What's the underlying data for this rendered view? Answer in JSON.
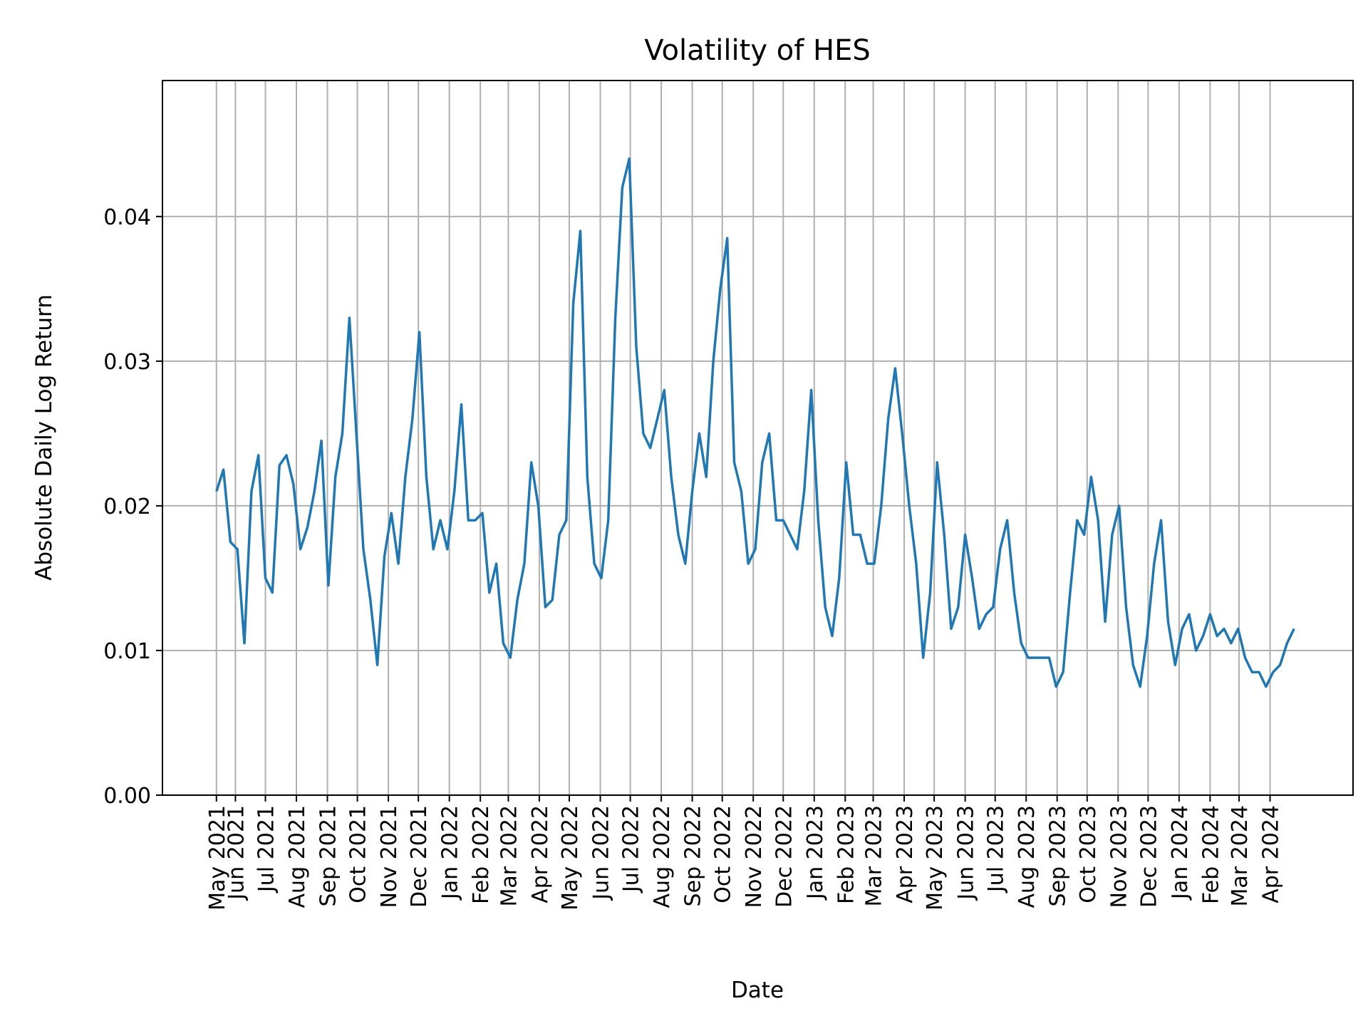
{
  "chart_data": {
    "type": "line",
    "title": "Volatility of HES",
    "xlabel": "Date",
    "ylabel": "Absolute Daily Log Return",
    "xlim": [
      "2021-03-20",
      "2024-06-23"
    ],
    "ylim": [
      0,
      0.0494
    ],
    "grid": true,
    "color": "#1f77b4",
    "y_ticks": [
      {
        "value": 0.0,
        "label": "0.00"
      },
      {
        "value": 0.01,
        "label": "0.01"
      },
      {
        "value": 0.02,
        "label": "0.02"
      },
      {
        "value": 0.03,
        "label": "0.03"
      },
      {
        "value": 0.04,
        "label": "0.04"
      }
    ],
    "x_ticks": [
      {
        "date": "2021-05-13",
        "label": "May 2021"
      },
      {
        "date": "2021-06-01",
        "label": "Jun 2021"
      },
      {
        "date": "2021-07-01",
        "label": "Jul 2021"
      },
      {
        "date": "2021-08-01",
        "label": "Aug 2021"
      },
      {
        "date": "2021-09-01",
        "label": "Sep 2021"
      },
      {
        "date": "2021-10-01",
        "label": "Oct 2021"
      },
      {
        "date": "2021-11-01",
        "label": "Nov 2021"
      },
      {
        "date": "2021-12-01",
        "label": "Dec 2021"
      },
      {
        "date": "2022-01-01",
        "label": "Jan 2022"
      },
      {
        "date": "2022-02-01",
        "label": "Feb 2022"
      },
      {
        "date": "2022-03-01",
        "label": "Mar 2022"
      },
      {
        "date": "2022-04-01",
        "label": "Apr 2022"
      },
      {
        "date": "2022-05-01",
        "label": "May 2022"
      },
      {
        "date": "2022-06-01",
        "label": "Jun 2022"
      },
      {
        "date": "2022-07-01",
        "label": "Jul 2022"
      },
      {
        "date": "2022-08-01",
        "label": "Aug 2022"
      },
      {
        "date": "2022-09-01",
        "label": "Sep 2022"
      },
      {
        "date": "2022-10-01",
        "label": "Oct 2022"
      },
      {
        "date": "2022-11-01",
        "label": "Nov 2022"
      },
      {
        "date": "2022-12-01",
        "label": "Dec 2022"
      },
      {
        "date": "2023-01-01",
        "label": "Jan 2023"
      },
      {
        "date": "2023-02-01",
        "label": "Feb 2023"
      },
      {
        "date": "2023-03-01",
        "label": "Mar 2023"
      },
      {
        "date": "2023-04-01",
        "label": "Apr 2023"
      },
      {
        "date": "2023-05-01",
        "label": "May 2023"
      },
      {
        "date": "2023-06-01",
        "label": "Jun 2023"
      },
      {
        "date": "2023-07-01",
        "label": "Jul 2023"
      },
      {
        "date": "2023-08-01",
        "label": "Aug 2023"
      },
      {
        "date": "2023-09-01",
        "label": "Sep 2023"
      },
      {
        "date": "2023-10-01",
        "label": "Oct 2023"
      },
      {
        "date": "2023-11-01",
        "label": "Nov 2023"
      },
      {
        "date": "2023-12-01",
        "label": "Dec 2023"
      },
      {
        "date": "2024-01-01",
        "label": "Jan 2024"
      },
      {
        "date": "2024-02-01",
        "label": "Feb 2024"
      },
      {
        "date": "2024-03-01",
        "label": "Mar 2024"
      },
      {
        "date": "2024-04-01",
        "label": "Apr 2024"
      }
    ],
    "x": [
      "2021-05-13",
      "2021-05-20",
      "2021-05-27",
      "2021-06-03",
      "2021-06-10",
      "2021-06-17",
      "2021-06-24",
      "2021-07-01",
      "2021-07-08",
      "2021-07-15",
      "2021-07-22",
      "2021-07-29",
      "2021-08-05",
      "2021-08-12",
      "2021-08-19",
      "2021-08-26",
      "2021-09-02",
      "2021-09-09",
      "2021-09-16",
      "2021-09-23",
      "2021-09-30",
      "2021-10-07",
      "2021-10-14",
      "2021-10-21",
      "2021-10-28",
      "2021-11-04",
      "2021-11-11",
      "2021-11-18",
      "2021-11-25",
      "2021-12-02",
      "2021-12-09",
      "2021-12-16",
      "2021-12-23",
      "2021-12-30",
      "2022-01-06",
      "2022-01-13",
      "2022-01-20",
      "2022-01-27",
      "2022-02-03",
      "2022-02-10",
      "2022-02-17",
      "2022-02-24",
      "2022-03-03",
      "2022-03-10",
      "2022-03-17",
      "2022-03-24",
      "2022-03-31",
      "2022-04-07",
      "2022-04-14",
      "2022-04-21",
      "2022-04-28",
      "2022-05-05",
      "2022-05-12",
      "2022-05-19",
      "2022-05-26",
      "2022-06-02",
      "2022-06-09",
      "2022-06-16",
      "2022-06-23",
      "2022-06-30",
      "2022-07-07",
      "2022-07-14",
      "2022-07-21",
      "2022-07-28",
      "2022-08-04",
      "2022-08-11",
      "2022-08-18",
      "2022-08-25",
      "2022-09-01",
      "2022-09-08",
      "2022-09-15",
      "2022-09-22",
      "2022-09-29",
      "2022-10-06",
      "2022-10-13",
      "2022-10-20",
      "2022-10-27",
      "2022-11-03",
      "2022-11-10",
      "2022-11-17",
      "2022-11-24",
      "2022-12-01",
      "2022-12-08",
      "2022-12-15",
      "2022-12-22",
      "2022-12-29",
      "2023-01-05",
      "2023-01-12",
      "2023-01-19",
      "2023-01-26",
      "2023-02-02",
      "2023-02-09",
      "2023-02-16",
      "2023-02-23",
      "2023-03-02",
      "2023-03-09",
      "2023-03-16",
      "2023-03-23",
      "2023-03-30",
      "2023-04-06",
      "2023-04-13",
      "2023-04-20",
      "2023-04-27",
      "2023-05-04",
      "2023-05-11",
      "2023-05-18",
      "2023-05-25",
      "2023-06-01",
      "2023-06-08",
      "2023-06-15",
      "2023-06-22",
      "2023-06-29",
      "2023-07-06",
      "2023-07-13",
      "2023-07-20",
      "2023-07-27",
      "2023-08-03",
      "2023-08-10",
      "2023-08-17",
      "2023-08-24",
      "2023-08-31",
      "2023-09-07",
      "2023-09-14",
      "2023-09-21",
      "2023-09-28",
      "2023-10-05",
      "2023-10-12",
      "2023-10-19",
      "2023-10-26",
      "2023-11-02",
      "2023-11-09",
      "2023-11-16",
      "2023-11-23",
      "2023-11-30",
      "2023-12-07",
      "2023-12-14",
      "2023-12-21",
      "2023-12-28",
      "2024-01-04",
      "2024-01-11",
      "2024-01-18",
      "2024-01-25",
      "2024-02-01",
      "2024-02-08",
      "2024-02-15",
      "2024-02-22",
      "2024-02-29",
      "2024-03-07",
      "2024-03-14",
      "2024-03-21",
      "2024-03-28",
      "2024-04-04",
      "2024-04-11",
      "2024-04-18",
      "2024-04-25"
    ],
    "y": [
      0.021,
      0.0225,
      0.0175,
      0.017,
      0.0105,
      0.021,
      0.0235,
      0.015,
      0.014,
      0.0228,
      0.0235,
      0.0215,
      0.017,
      0.0185,
      0.021,
      0.0245,
      0.0145,
      0.022,
      0.025,
      0.033,
      0.025,
      0.017,
      0.0135,
      0.009,
      0.0165,
      0.0195,
      0.016,
      0.022,
      0.026,
      0.032,
      0.022,
      0.017,
      0.019,
      0.017,
      0.021,
      0.027,
      0.019,
      0.019,
      0.0195,
      0.014,
      0.016,
      0.0105,
      0.0095,
      0.0135,
      0.016,
      0.023,
      0.02,
      0.013,
      0.0135,
      0.018,
      0.019,
      0.034,
      0.039,
      0.022,
      0.016,
      0.015,
      0.019,
      0.033,
      0.042,
      0.044,
      0.031,
      0.025,
      0.024,
      0.026,
      0.028,
      0.022,
      0.018,
      0.016,
      0.021,
      0.025,
      0.022,
      0.03,
      0.035,
      0.0385,
      0.023,
      0.021,
      0.016,
      0.017,
      0.023,
      0.025,
      0.019,
      0.019,
      0.018,
      0.017,
      0.021,
      0.028,
      0.019,
      0.013,
      0.011,
      0.015,
      0.023,
      0.018,
      0.018,
      0.016,
      0.016,
      0.02,
      0.026,
      0.0295,
      0.025,
      0.02,
      0.016,
      0.0095,
      0.014,
      0.023,
      0.018,
      0.0115,
      0.013,
      0.018,
      0.015,
      0.0115,
      0.0125,
      0.013,
      0.017,
      0.019,
      0.014,
      0.0105,
      0.0095,
      0.0095,
      0.0095,
      0.0095,
      0.0075,
      0.0085,
      0.014,
      0.019,
      0.018,
      0.022,
      0.019,
      0.012,
      0.018,
      0.02,
      0.013,
      0.009,
      0.0075,
      0.011,
      0.016,
      0.019,
      0.012,
      0.009,
      0.0115,
      0.0125,
      0.01,
      0.011,
      0.0125,
      0.011,
      0.0115,
      0.0105,
      0.0115,
      0.0095,
      0.0085,
      0.0085,
      0.0075,
      0.0085,
      0.009,
      0.0105,
      0.0115
    ]
  }
}
